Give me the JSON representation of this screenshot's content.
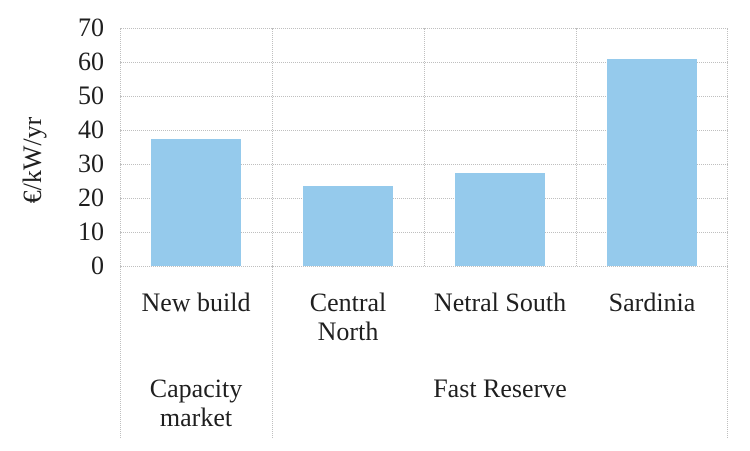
{
  "chart_data": {
    "type": "bar",
    "title": "",
    "xlabel": "",
    "ylabel": "€/kW/yr",
    "ylim": [
      0,
      70
    ],
    "yticks": [
      0,
      10,
      20,
      30,
      40,
      50,
      60,
      70
    ],
    "categories": [
      "New build",
      "Central\nNorth",
      "Netral South",
      "Sardinia"
    ],
    "values": [
      37.5,
      23.5,
      27.5,
      61
    ],
    "groups": [
      {
        "label": "Capacity\nmarket",
        "span": [
          0,
          1
        ]
      },
      {
        "label": "Fast Reserve",
        "span": [
          1,
          4
        ]
      }
    ],
    "grid": true,
    "legend": false,
    "colors": {
      "bar": "#95CAEC",
      "gridline": "#bfbfbf",
      "text": "#1f1f1f",
      "background": "#ffffff"
    }
  }
}
